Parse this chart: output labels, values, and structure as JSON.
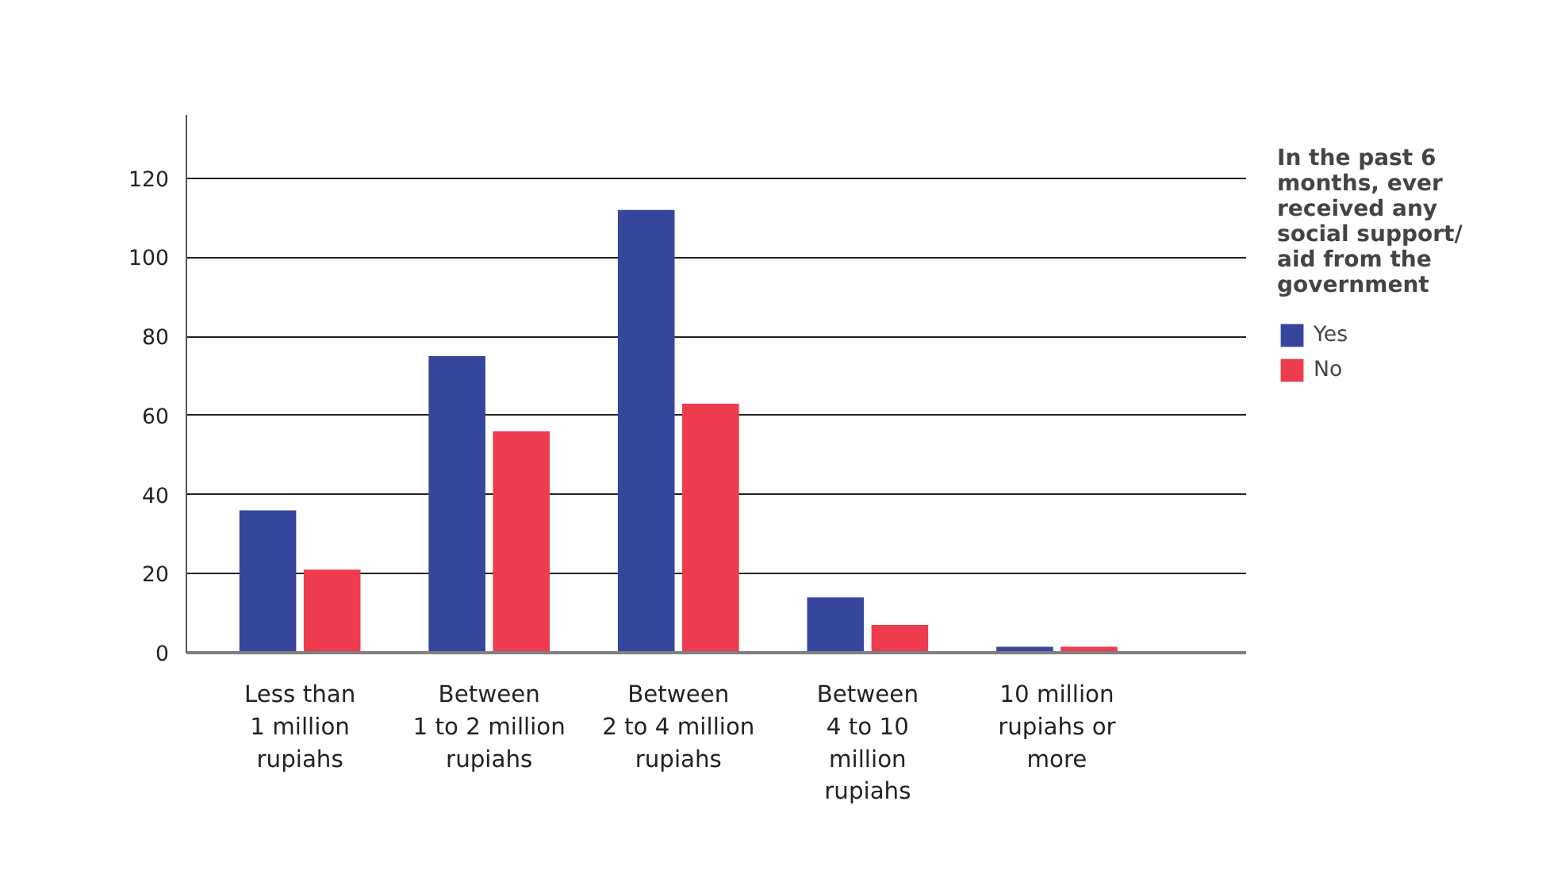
{
  "chart_data": {
    "type": "bar",
    "categories": [
      "Less than\n1 million\nrupiahs",
      "Between\n1 to 2 million\nrupiahs",
      "Between\n2 to 4 million\nrupiahs",
      "Between\n4 to 10\nmillion\nrupiahs",
      "10 million\nrupiahs or\nmore"
    ],
    "series": [
      {
        "name": "Yes",
        "color": "#36469c",
        "values": [
          36,
          75,
          112,
          14,
          1.5
        ]
      },
      {
        "name": "No",
        "color": "#ee3b4d",
        "values": [
          21,
          56,
          63,
          7,
          1.5
        ]
      }
    ],
    "legend_title": "In the past 6\nmonths, ever\nreceived any\nsocial support/\naid from the\ngovernment",
    "ylim": [
      0,
      136
    ],
    "yticks": [
      0,
      20,
      40,
      60,
      80,
      100,
      120
    ],
    "grid": "y",
    "legend": "right"
  }
}
